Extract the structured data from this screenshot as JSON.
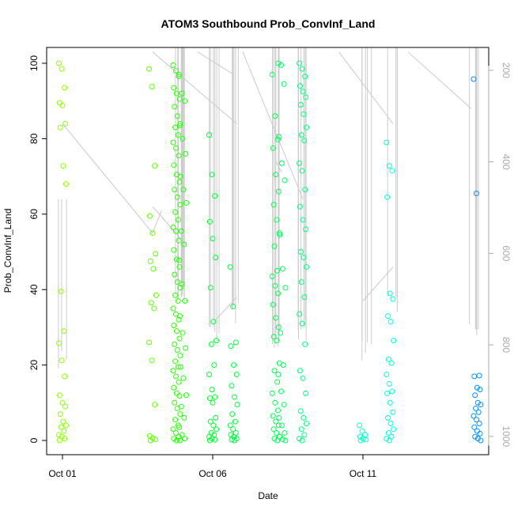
{
  "chart_data": {
    "type": "scatter",
    "title": "ATOM3 Southbound Prob_ConvInf_Land",
    "xlabel": "Date",
    "ylabel": "Prob_ConvInf_Land",
    "x_ticks": [
      "Oct 01",
      "Oct 06",
      "Oct 11"
    ],
    "x_range_days": [
      0.0,
      14.0
    ],
    "ylim": [
      0,
      100
    ],
    "y_ticks": [
      0,
      20,
      40,
      60,
      80,
      100
    ],
    "y2_ticks": [
      200,
      400,
      600,
      800,
      1000
    ],
    "y2lim": [
      1040,
      150
    ],
    "colors": {
      "early": "#80ff00",
      "mid": "#00ff40",
      "late": "#00ffff",
      "end": "#0080ff",
      "profile_line": "#cccccc",
      "track_line": "#d0c4d8",
      "axis": "#000000",
      "right_axis": "#a8a8a8"
    },
    "scatter_clusters": [
      {
        "day": 0.0,
        "y": [
          100,
          98.5,
          93.5,
          89.5,
          88.8,
          84,
          83,
          72.8,
          68,
          39.5,
          29,
          25.8,
          21.2,
          17,
          12,
          10,
          9,
          7,
          5,
          4,
          3.5,
          2.5,
          1.5,
          1,
          0.5,
          0
        ],
        "color": "#8cff00"
      },
      {
        "day": 3.0,
        "y": [
          98.5,
          93.8,
          72.8,
          59.5,
          55,
          49.5,
          47.5,
          45.5,
          38.5,
          36.5,
          35,
          26,
          21.2,
          9.5,
          1.2,
          0.6,
          0.3,
          0
        ],
        "color": "#60ff00"
      },
      {
        "day": 3.8,
        "y": [
          99.5,
          98,
          96.5,
          93.5,
          92,
          90.5,
          88.5,
          86,
          84,
          83,
          81,
          79,
          77.5,
          75.5,
          73,
          70.5,
          68.5,
          66.5,
          64.5,
          62.5,
          60.5,
          58.5,
          56.5,
          55.5,
          53,
          50.5,
          48,
          46,
          44,
          42,
          40.5,
          38.5,
          37,
          35,
          33.5,
          32,
          30.5,
          29,
          27,
          25.5,
          24,
          22.5,
          21,
          19.5,
          18.5,
          17,
          15.5,
          14,
          12.5,
          11.8,
          10,
          8.5,
          7,
          5.5,
          4,
          3,
          2,
          1,
          0.5,
          0
        ],
        "color": "#2cff00"
      },
      {
        "day": 4.0,
        "y": [
          97,
          92,
          90,
          83.5,
          80,
          76,
          70,
          66.5,
          63,
          55.5,
          52,
          47.8,
          41.5,
          37,
          33,
          28.5,
          24.5,
          19.5,
          16.5,
          12,
          9,
          6,
          3.5,
          1.5,
          0.5,
          0
        ],
        "color": "#20ff10"
      },
      {
        "day": 5.0,
        "y": [
          81,
          70.5,
          64.8,
          58,
          53.5,
          48.5,
          40.5,
          31.5,
          26.5,
          25.5,
          20,
          17.5,
          13.5,
          11.5,
          11.2,
          10,
          6,
          5,
          4,
          3,
          2,
          1.5,
          1,
          0.5,
          0.2,
          0
        ],
        "color": "#00ff30"
      },
      {
        "day": 5.7,
        "y": [
          46,
          35.5,
          26,
          25,
          20,
          17.5,
          14.5,
          11.5,
          9.5,
          7,
          5,
          4,
          3,
          2,
          1.5,
          1,
          0.5,
          0.2,
          0
        ],
        "color": "#00ff40"
      },
      {
        "day": 7.1,
        "y": [
          97,
          86,
          79.8,
          77.5,
          70.5,
          66,
          62.5,
          58.5,
          55,
          51.5,
          45,
          43.5,
          41,
          39,
          36,
          32.5,
          30,
          27.5,
          26.5,
          20.5,
          18.5,
          15.5,
          12.5,
          10,
          8,
          6.5,
          5,
          4,
          3,
          2,
          1,
          0.5,
          0
        ],
        "color": "#00ff50"
      },
      {
        "day": 7.3,
        "y": [
          100,
          99.5,
          94.5,
          80.5,
          73.5,
          69,
          54.5,
          45.5,
          40.5,
          28.5,
          20,
          17.5,
          13,
          9.5,
          6,
          4,
          2,
          1,
          0.3,
          0
        ],
        "color": "#00ff60"
      },
      {
        "day": 8.0,
        "y": [
          100,
          98.5,
          96.5,
          94,
          92.5,
          91,
          89,
          86.5,
          83,
          81,
          79.5,
          73.5,
          71.5,
          66.5,
          62,
          58.5,
          56,
          50,
          48.5,
          46,
          42,
          38,
          33.5,
          31,
          25.5,
          18.5,
          16.5,
          12.5,
          7.8,
          6,
          4.5,
          3,
          1.5,
          0.5,
          0
        ],
        "color": "#00ff80"
      },
      {
        "day": 10.0,
        "y": [
          4,
          2.5,
          1.5,
          1,
          0.5,
          0.2,
          0
        ],
        "color": "#00ffd0"
      },
      {
        "day": 10.9,
        "y": [
          79,
          72.8,
          71.5,
          64.5,
          39,
          37.5,
          33,
          31.5,
          26.5,
          21.5,
          20.5,
          17.5,
          15,
          13,
          12.5,
          10,
          7.5,
          6,
          4.5,
          3,
          2,
          1,
          0.5,
          0
        ],
        "color": "#00ffdd"
      },
      {
        "day": 13.8,
        "y": [
          95.8,
          65.5,
          17.2,
          17,
          14,
          13.5,
          12,
          10,
          9.5,
          8.5,
          7.5,
          6.5,
          5.5,
          4.5,
          3.5,
          2.5,
          1.8,
          1,
          0.5,
          0
        ],
        "color": "#0090ff"
      }
    ],
    "series": [
      {
        "name": "",
        "type": "line",
        "note": "vertical grey profiles and pale lilac track lines (unlabeled)"
      }
    ]
  }
}
